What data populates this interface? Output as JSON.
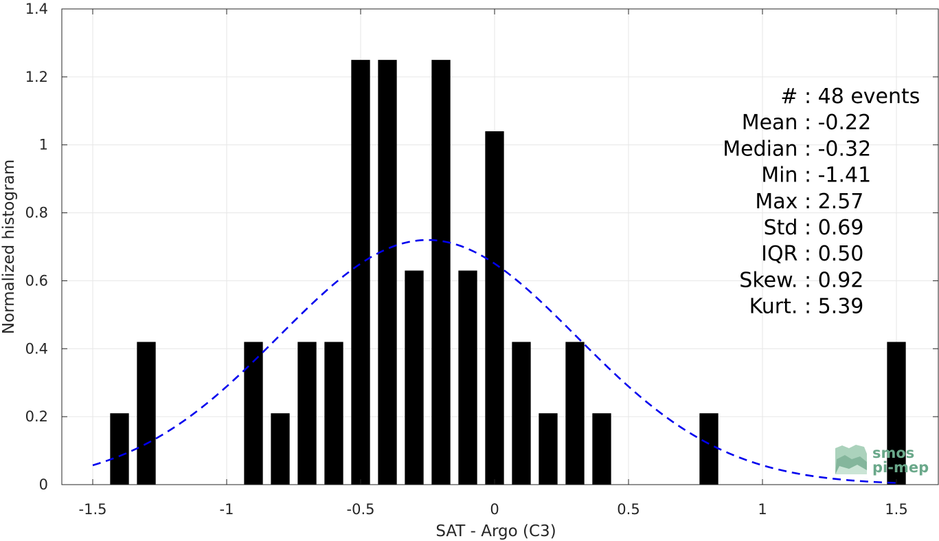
{
  "chart_data": {
    "type": "bar",
    "xlabel": "SAT - Argo (C3)",
    "ylabel": "Normalized histogram",
    "xlim": [
      -1.62,
      1.62
    ],
    "ylim": [
      0,
      1.4
    ],
    "xticks": [
      -1.5,
      -1,
      -0.5,
      0,
      0.5,
      1,
      1.5
    ],
    "xtick_labels": [
      "-1.5",
      "-1",
      "-0.5",
      "0",
      "0.5",
      "1",
      "1.5"
    ],
    "yticks": [
      0,
      0.2,
      0.4,
      0.6,
      0.8,
      1,
      1.2,
      1.4
    ],
    "ytick_labels": [
      "0",
      "0.2",
      "0.4",
      "0.6",
      "0.8",
      "1",
      "1.2",
      "1.4"
    ],
    "grid": true,
    "bar_color": "#000000",
    "bar_width": 0.07,
    "bars": {
      "x": [
        -1.4,
        -1.3,
        -0.9,
        -0.8,
        -0.7,
        -0.6,
        -0.5,
        -0.4,
        -0.3,
        -0.2,
        -0.1,
        0.0,
        0.1,
        0.2,
        0.3,
        0.4,
        0.8,
        1.5
      ],
      "values": [
        0.21,
        0.42,
        0.42,
        0.21,
        0.42,
        0.42,
        1.25,
        1.25,
        0.63,
        1.25,
        0.63,
        1.04,
        0.42,
        0.21,
        0.42,
        0.21,
        0.21,
        0.42
      ]
    },
    "fit": {
      "style": "dashed",
      "color": "#0000ee",
      "mean": -0.25,
      "std": 0.555,
      "peak": 0.72,
      "x_range": [
        -1.5,
        1.5
      ]
    },
    "stats_lines": [
      "#  : 48 events",
      "Mean : -0.22",
      "Median : -0.32",
      "Min : -1.41",
      "Max : 2.57",
      "Std : 0.69",
      "IQR : 0.50",
      "Skew. : 0.92",
      "Kurt. : 5.39"
    ],
    "logo": {
      "line1": "smos",
      "line2": "pi-mep",
      "color": "#6aa88a"
    }
  }
}
